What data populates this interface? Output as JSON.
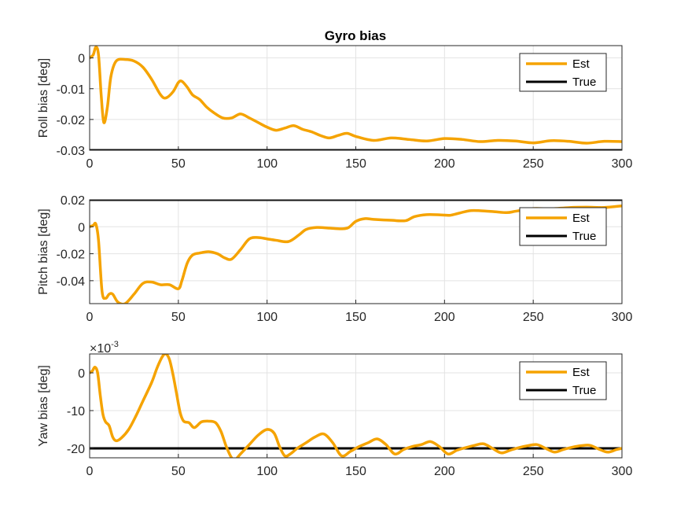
{
  "figure": {
    "title": "Gyro bias"
  },
  "colors": {
    "est": "#f5a300",
    "true": "#000000",
    "grid": "#e3e3e3",
    "axis": "#262626"
  },
  "chart_data": [
    {
      "type": "line",
      "title": "Gyro bias",
      "xlabel": "",
      "ylabel": "Roll bias [deg]",
      "xlim": [
        0,
        300
      ],
      "ylim": [
        -0.03,
        0.004
      ],
      "xticks": [
        0,
        50,
        100,
        150,
        200,
        250,
        300
      ],
      "xtick_labels": [
        "0",
        "50",
        "100",
        "150",
        "200",
        "250",
        "300"
      ],
      "yticks": [
        -0.03,
        -0.02,
        -0.01,
        0
      ],
      "ytick_labels": [
        "-0.03",
        "-0.02",
        "-0.01",
        "0"
      ],
      "exponent_label": "",
      "grid": true,
      "legend": {
        "position": "top-right",
        "entries": [
          "Est",
          "True"
        ]
      },
      "series": [
        {
          "name": "Est",
          "color": "#f5a300",
          "x": [
            0,
            2,
            3.5,
            5,
            6.5,
            8,
            10,
            12,
            15,
            20,
            25,
            30,
            35,
            40,
            43,
            47,
            50,
            52,
            55,
            58,
            62,
            66,
            70,
            75,
            80,
            85,
            90,
            95,
            100,
            105,
            110,
            115,
            120,
            125,
            130,
            135,
            140,
            145,
            150,
            160,
            170,
            180,
            190,
            200,
            210,
            220,
            230,
            240,
            250,
            260,
            270,
            280,
            290,
            300
          ],
          "y": [
            0,
            0.001,
            0.0035,
            0.001,
            -0.012,
            -0.021,
            -0.016,
            -0.006,
            -0.001,
            -0.0005,
            -0.001,
            -0.003,
            -0.007,
            -0.012,
            -0.013,
            -0.011,
            -0.008,
            -0.0076,
            -0.0095,
            -0.012,
            -0.0135,
            -0.016,
            -0.0178,
            -0.0195,
            -0.0195,
            -0.0182,
            -0.0195,
            -0.021,
            -0.0225,
            -0.0235,
            -0.0228,
            -0.022,
            -0.0232,
            -0.024,
            -0.0252,
            -0.026,
            -0.0252,
            -0.0245,
            -0.0255,
            -0.0268,
            -0.026,
            -0.0265,
            -0.027,
            -0.0262,
            -0.0265,
            -0.0272,
            -0.0268,
            -0.027,
            -0.0276,
            -0.0269,
            -0.0271,
            -0.0277,
            -0.0271,
            -0.0272
          ]
        },
        {
          "name": "True",
          "color": "#000000",
          "x": [
            0,
            300
          ],
          "y": [
            -0.03,
            -0.03
          ]
        }
      ]
    },
    {
      "type": "line",
      "title": "",
      "xlabel": "",
      "ylabel": "Pitch bias [deg]",
      "xlim": [
        0,
        300
      ],
      "ylim": [
        -0.057,
        0.02
      ],
      "xticks": [
        0,
        50,
        100,
        150,
        200,
        250,
        300
      ],
      "xtick_labels": [
        "0",
        "50",
        "100",
        "150",
        "200",
        "250",
        "300"
      ],
      "yticks": [
        -0.04,
        -0.02,
        0,
        0.02
      ],
      "ytick_labels": [
        "-0.04",
        "-0.02",
        "0",
        "0.02"
      ],
      "exponent_label": "",
      "grid": true,
      "legend": {
        "position": "top-right",
        "entries": [
          "Est",
          "True"
        ]
      },
      "series": [
        {
          "name": "Est",
          "color": "#f5a300",
          "x": [
            0,
            2,
            3.5,
            5,
            7,
            9,
            11,
            13,
            16,
            20,
            25,
            30,
            35,
            40,
            45,
            50,
            52,
            55,
            58,
            62,
            67,
            72,
            76,
            80,
            85,
            90,
            95,
            100,
            105,
            112,
            118,
            122,
            128,
            135,
            142,
            146,
            150,
            155,
            160,
            170,
            178,
            183,
            190,
            198,
            203,
            208,
            215,
            225,
            235,
            240,
            250,
            260,
            270,
            280,
            290,
            300
          ],
          "y": [
            0,
            0.001,
            0.002,
            -0.01,
            -0.048,
            -0.053,
            -0.05,
            -0.05,
            -0.056,
            -0.057,
            -0.05,
            -0.042,
            -0.041,
            -0.043,
            -0.043,
            -0.046,
            -0.04,
            -0.027,
            -0.021,
            -0.0195,
            -0.0185,
            -0.02,
            -0.023,
            -0.024,
            -0.017,
            -0.009,
            -0.008,
            -0.009,
            -0.01,
            -0.011,
            -0.006,
            -0.002,
            -0.0005,
            -0.001,
            -0.0015,
            -0.0005,
            0.004,
            0.006,
            0.0055,
            0.0048,
            0.0045,
            0.0075,
            0.009,
            0.0088,
            0.0085,
            0.01,
            0.012,
            0.0115,
            0.0105,
            0.0115,
            0.0135,
            0.0133,
            0.0142,
            0.0145,
            0.0143,
            0.0155
          ]
        },
        {
          "name": "True",
          "color": "#000000",
          "x": [
            0,
            300
          ],
          "y": [
            0.02,
            0.02
          ]
        }
      ]
    },
    {
      "type": "line",
      "title": "",
      "xlabel": "",
      "ylabel": "Yaw bias [deg]",
      "xlim": [
        0,
        300
      ],
      "ylim": [
        -22.5,
        5
      ],
      "xticks": [
        0,
        50,
        100,
        150,
        200,
        250,
        300
      ],
      "xtick_labels": [
        "0",
        "50",
        "100",
        "150",
        "200",
        "250",
        "300"
      ],
      "yticks": [
        -20,
        -10,
        0
      ],
      "ytick_labels": [
        "-20",
        "-10",
        "0"
      ],
      "exponent_label": "×10-3",
      "exponent_base": "×10",
      "exponent_power": "-3",
      "grid": true,
      "legend": {
        "position": "top-right",
        "entries": [
          "Est",
          "True"
        ]
      },
      "series": [
        {
          "name": "Est",
          "color": "#f5a300",
          "x": [
            0,
            1.5,
            3,
            4.5,
            6,
            7.5,
            9,
            11,
            13,
            15,
            18,
            22,
            26,
            30,
            35,
            38,
            41,
            43,
            45,
            47,
            49,
            51,
            53,
            56,
            59,
            63,
            67,
            71,
            74,
            77,
            80,
            82,
            85,
            90,
            95,
            100,
            104,
            107,
            110,
            113,
            117,
            122,
            127,
            132,
            137,
            142,
            147,
            152,
            157,
            162,
            167,
            172,
            177,
            182,
            187,
            192,
            197,
            202,
            207,
            212,
            217,
            222,
            227,
            232,
            237,
            242,
            247,
            252,
            257,
            262,
            267,
            272,
            277,
            282,
            287,
            292,
            297,
            300
          ],
          "y": [
            0,
            0.5,
            1.5,
            0,
            -6,
            -11,
            -13,
            -14,
            -17,
            -18,
            -17.2,
            -15,
            -11.5,
            -7.5,
            -2.5,
            1.3,
            4.3,
            5,
            3.5,
            -0.5,
            -5.5,
            -10.5,
            -12.8,
            -13.2,
            -14.5,
            -13,
            -12.8,
            -13.2,
            -15.5,
            -19.5,
            -22.5,
            -23,
            -21.5,
            -19,
            -16.5,
            -15,
            -16,
            -19.5,
            -22,
            -21.5,
            -20,
            -18.5,
            -17,
            -16.2,
            -18.5,
            -22,
            -20.8,
            -19.5,
            -18.5,
            -17.5,
            -19,
            -21.5,
            -20.3,
            -19.5,
            -19,
            -18.2,
            -19.5,
            -21.5,
            -20.5,
            -19.8,
            -19.2,
            -18.8,
            -20,
            -21.2,
            -20.5,
            -19.8,
            -19.3,
            -19,
            -20,
            -21,
            -20.3,
            -19.7,
            -19.3,
            -19.2,
            -20.2,
            -21,
            -20.3,
            -20
          ]
        },
        {
          "name": "True",
          "color": "#000000",
          "x": [
            0,
            300
          ],
          "y": [
            -20,
            -20
          ]
        }
      ]
    }
  ]
}
